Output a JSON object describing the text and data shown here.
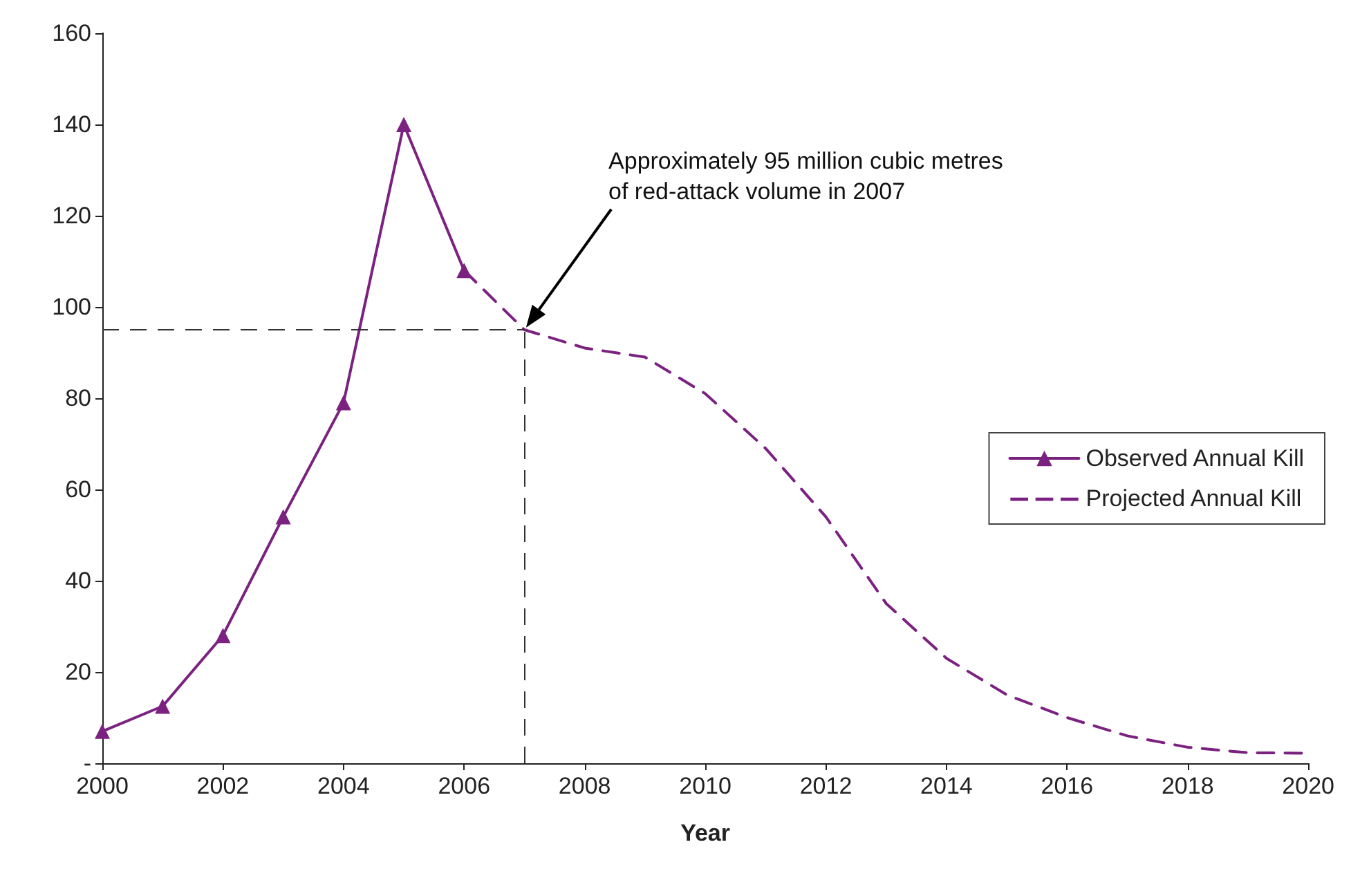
{
  "chart_data": {
    "type": "line",
    "xlabel": "Year",
    "xlim": [
      2000,
      2020
    ],
    "xticks": [
      2000,
      2002,
      2004,
      2006,
      2008,
      2010,
      2012,
      2014,
      2016,
      2018,
      2020
    ],
    "ylim": [
      0,
      160
    ],
    "yticks": [
      {
        "value": 0,
        "label": "-"
      },
      20,
      40,
      60,
      80,
      100,
      120,
      140,
      160
    ],
    "series": [
      {
        "name": "Observed Annual Kill",
        "color": "#7b2281",
        "marker": "triangle",
        "line_style": "solid",
        "x": [
          2000,
          2001,
          2002,
          2003,
          2004,
          2005,
          2006
        ],
        "values": [
          7,
          12.5,
          28,
          54,
          79,
          140,
          108
        ]
      },
      {
        "name": "Projected Annual Kill",
        "color": "#7b2281",
        "marker": "none",
        "line_style": "dashed",
        "x": [
          2006,
          2007,
          2008,
          2009,
          2010,
          2011,
          2012,
          2013,
          2014,
          2015,
          2016,
          2017,
          2018,
          2019,
          2020
        ],
        "values": [
          108,
          95,
          91,
          89,
          81,
          69,
          54,
          35,
          23,
          15,
          10,
          6,
          3.5,
          2.3,
          2.2
        ]
      }
    ],
    "ref_lines": [
      {
        "axis": "x",
        "value": 2007,
        "color": "#333333",
        "line_style": "dashed"
      },
      {
        "axis": "y",
        "value": 95,
        "color": "#333333",
        "line_style": "dashed"
      }
    ],
    "annotations": [
      "Approximately 95 million cubic metres\nof red-attack volume in 2007"
    ],
    "grid": false,
    "legend": "right"
  }
}
